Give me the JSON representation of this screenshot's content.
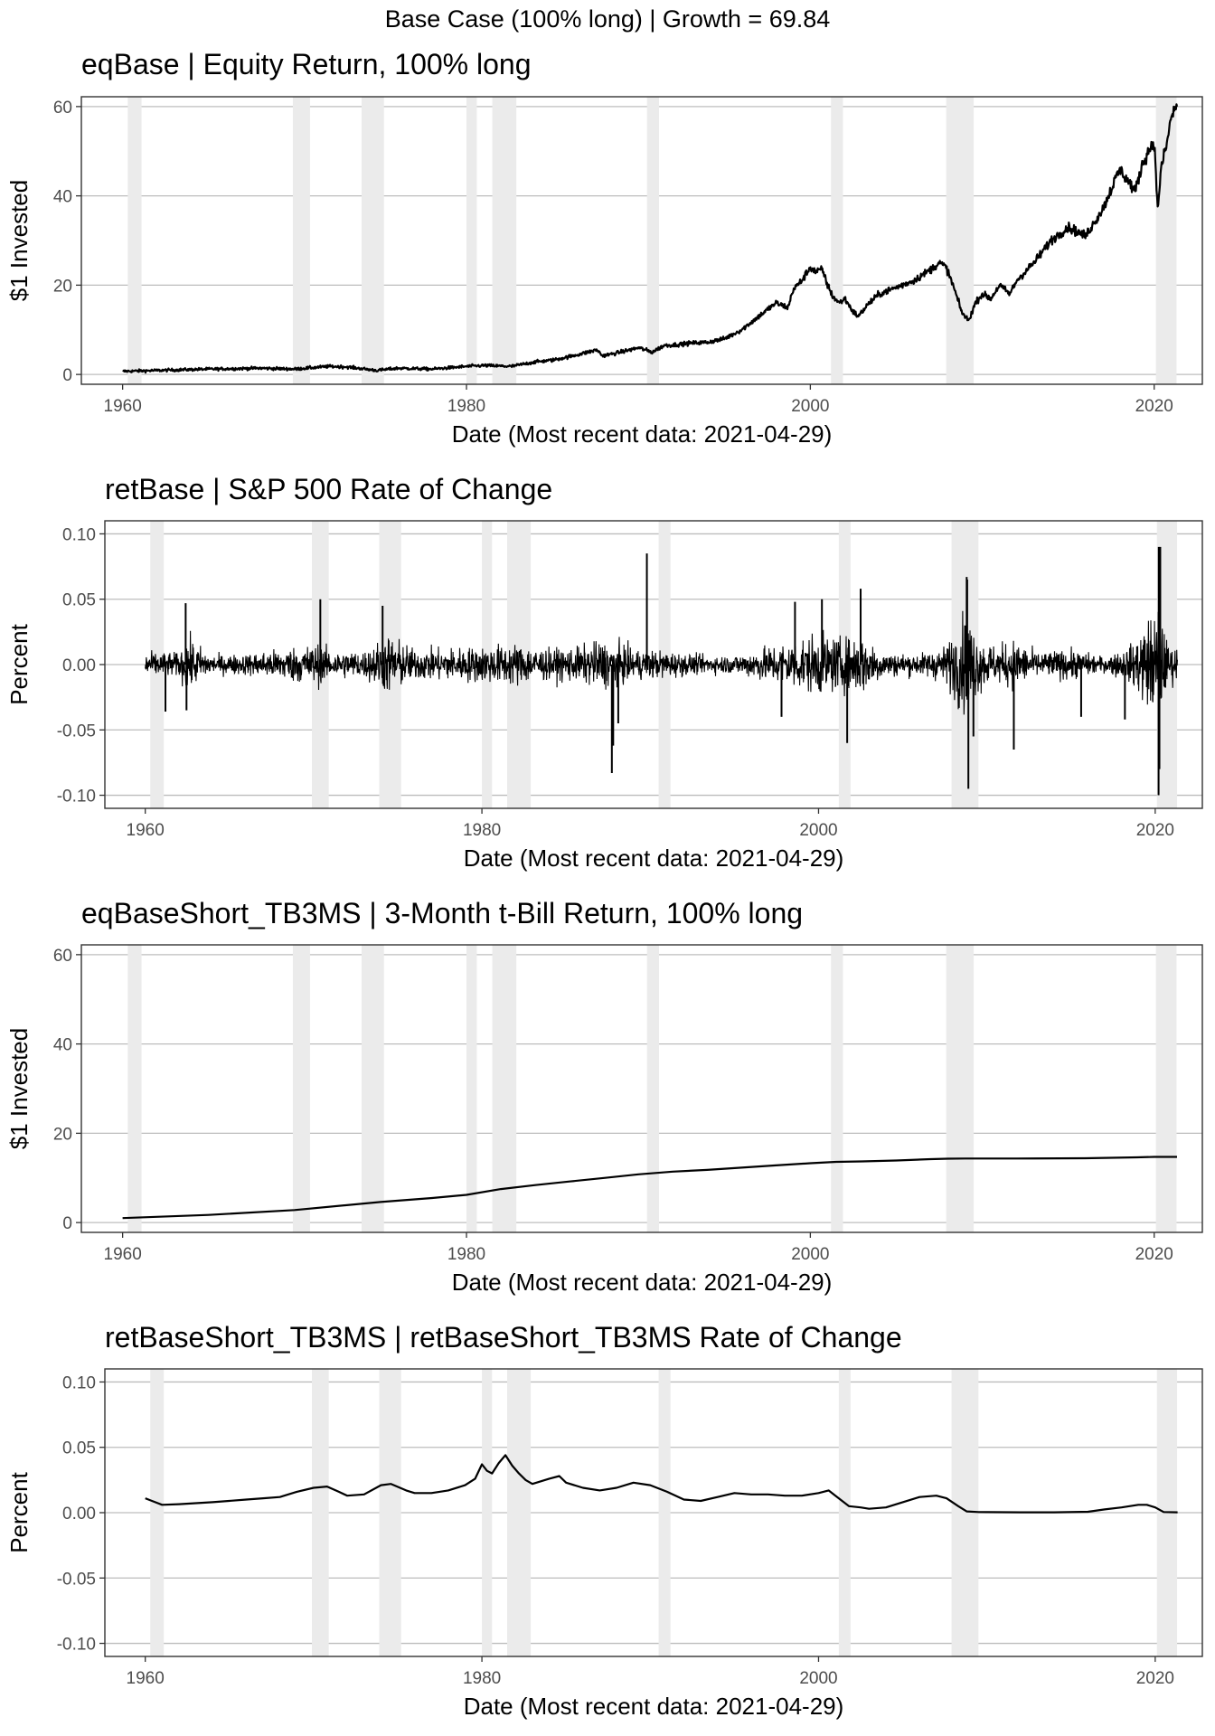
{
  "figure": {
    "title": "Base Case (100% long) | Growth = 69.84"
  },
  "recessions": [
    [
      1960.3,
      1961.1
    ],
    [
      1969.9,
      1970.9
    ],
    [
      1973.9,
      1975.2
    ],
    [
      1980.0,
      1980.6
    ],
    [
      1981.5,
      1982.9
    ],
    [
      1990.5,
      1991.2
    ],
    [
      2001.2,
      2001.9
    ],
    [
      2007.9,
      2009.5
    ],
    [
      2020.1,
      2021.3
    ]
  ],
  "chart_data": [
    {
      "id": "eqBase",
      "type": "line",
      "title": "eqBase | Equity Return, 100% long",
      "xlabel": "Date (Most recent data: 2021-04-29)",
      "ylabel": "$1 Invested",
      "xlim": [
        1957.6,
        2022.8
      ],
      "ylim": [
        -2.2,
        62.2
      ],
      "xticks": [
        1960,
        1980,
        2000,
        2020
      ],
      "yticks": [
        0,
        20,
        40,
        60
      ],
      "ytick_labels": [
        "0",
        "20",
        "40",
        "60"
      ],
      "grid": true,
      "x": [
        1960.0,
        1962.0,
        1965.0,
        1968.0,
        1970.0,
        1972.0,
        1973.0,
        1974.8,
        1976.0,
        1978.0,
        1980.0,
        1981.0,
        1982.6,
        1984.0,
        1985.0,
        1986.0,
        1987.6,
        1987.9,
        1988.5,
        1989.5,
        1990.0,
        1990.8,
        1991.5,
        1992.0,
        1993.0,
        1994.0,
        1995.0,
        1996.0,
        1997.0,
        1998.0,
        1998.7,
        1999.0,
        1999.5,
        2000.0,
        2000.3,
        2000.7,
        2001.0,
        2001.3,
        2001.7,
        2002.0,
        2002.5,
        2002.8,
        2003.3,
        2004.0,
        2005.0,
        2006.0,
        2007.0,
        2007.5,
        2007.9,
        2008.3,
        2008.8,
        2009.2,
        2009.6,
        2010.0,
        2010.5,
        2011.0,
        2011.6,
        2012.0,
        2013.0,
        2014.0,
        2015.0,
        2015.5,
        2016.0,
        2017.0,
        2018.0,
        2018.9,
        2019.3,
        2019.8,
        2020.0,
        2020.2,
        2020.4,
        2020.8,
        2021.0,
        2021.33
      ],
      "y": [
        0.7,
        0.9,
        1.2,
        1.4,
        1.2,
        1.8,
        1.7,
        0.9,
        1.4,
        1.2,
        1.8,
        2.0,
        1.8,
        2.8,
        3.2,
        4.0,
        5.5,
        4.2,
        4.6,
        5.5,
        6.0,
        5.0,
        6.5,
        6.6,
        7.0,
        7.2,
        8.0,
        10.0,
        13.0,
        16.0,
        15.0,
        19.0,
        21.0,
        24.0,
        23.0,
        23.5,
        20.0,
        17.5,
        16.0,
        17.0,
        14.0,
        13.0,
        15.5,
        18.0,
        19.5,
        21.0,
        23.5,
        25.0,
        24.0,
        20.0,
        14.0,
        12.0,
        16.0,
        18.0,
        17.0,
        20.0,
        18.0,
        21.0,
        25.0,
        30.0,
        33.0,
        32.0,
        31.0,
        37.0,
        46.0,
        41.0,
        47.0,
        51.0,
        52.0,
        37.0,
        46.0,
        53.0,
        58.0,
        60.0
      ]
    },
    {
      "id": "retBase",
      "type": "line",
      "title": "retBase | S&P 500 Rate of Change",
      "xlabel": "Date (Most recent data: 2021-04-29)",
      "ylabel": "Percent",
      "xlim": [
        1957.6,
        2022.8
      ],
      "ylim": [
        -0.11,
        0.11
      ],
      "xticks": [
        1960,
        1980,
        2000,
        2020
      ],
      "yticks": [
        -0.1,
        -0.05,
        0.0,
        0.05,
        0.1
      ],
      "ytick_labels": [
        "-0.10",
        "-0.05",
        "0.00",
        "0.05",
        "0.10"
      ],
      "grid": true,
      "volatility_x": [
        1960.0,
        1962.0,
        1962.5,
        1964.0,
        1966.0,
        1970.3,
        1971.0,
        1973.0,
        1974.5,
        1976.0,
        1980.0,
        1982.0,
        1984.0,
        1986.0,
        1987.0,
        1988.0,
        1989.0,
        1991.0,
        1993.0,
        1995.0,
        1997.0,
        1998.5,
        2000.0,
        2001.5,
        2002.5,
        2003.5,
        2004.0,
        2006.0,
        2007.5,
        2008.8,
        2009.5,
        2010.5,
        2011.6,
        2013.0,
        2015.0,
        2017.0,
        2018.5,
        2020.2,
        2020.7,
        2021.33
      ],
      "volatility_y": [
        0.008,
        0.008,
        0.018,
        0.006,
        0.007,
        0.014,
        0.009,
        0.009,
        0.02,
        0.01,
        0.012,
        0.014,
        0.01,
        0.012,
        0.016,
        0.014,
        0.01,
        0.009,
        0.006,
        0.006,
        0.012,
        0.016,
        0.02,
        0.017,
        0.02,
        0.012,
        0.008,
        0.007,
        0.012,
        0.035,
        0.018,
        0.012,
        0.016,
        0.008,
        0.01,
        0.005,
        0.012,
        0.04,
        0.015,
        0.01
      ],
      "spikes_x": [
        1961.2,
        1962.4,
        1962.45,
        1970.4,
        1974.1,
        1987.72,
        1987.8,
        1988.1,
        1989.8,
        1997.8,
        1998.6,
        2000.2,
        2001.7,
        2002.5,
        2008.8,
        2008.83,
        2008.9,
        2009.2,
        2011.6,
        2015.6,
        2018.2,
        2020.2,
        2020.21,
        2020.25,
        2020.3
      ],
      "spikes_y": [
        -0.036,
        0.047,
        -0.035,
        0.05,
        0.045,
        -0.083,
        -0.062,
        -0.045,
        0.085,
        -0.04,
        0.048,
        0.05,
        -0.06,
        0.058,
        0.067,
        0.065,
        -0.095,
        -0.055,
        -0.065,
        -0.04,
        -0.042,
        -0.1,
        0.09,
        -0.08,
        0.09
      ]
    },
    {
      "id": "eqBaseShort_TB3MS",
      "type": "line",
      "title": "eqBaseShort_TB3MS | 3-Month t-Bill Return, 100% long",
      "xlabel": "Date (Most recent data: 2021-04-29)",
      "ylabel": "$1 Invested",
      "xlim": [
        1957.6,
        2022.8
      ],
      "ylim": [
        -2.2,
        62.2
      ],
      "xticks": [
        1960,
        1980,
        2000,
        2020
      ],
      "yticks": [
        0,
        20,
        40,
        60
      ],
      "ytick_labels": [
        "0",
        "20",
        "40",
        "60"
      ],
      "grid": true,
      "x": [
        1960.0,
        1965.0,
        1970.0,
        1975.0,
        1978.0,
        1980.0,
        1982.0,
        1984.0,
        1986.0,
        1988.0,
        1990.0,
        1992.0,
        1994.0,
        1996.0,
        1998.0,
        2000.0,
        2001.5,
        2003.0,
        2005.0,
        2007.0,
        2008.0,
        2009.0,
        2012.0,
        2016.0,
        2019.0,
        2020.0,
        2021.33
      ],
      "y": [
        1.0,
        1.7,
        2.8,
        4.6,
        5.5,
        6.2,
        7.5,
        8.4,
        9.2,
        10.0,
        10.8,
        11.4,
        11.8,
        12.3,
        12.8,
        13.3,
        13.6,
        13.7,
        13.9,
        14.2,
        14.3,
        14.35,
        14.35,
        14.4,
        14.6,
        14.7,
        14.7
      ]
    },
    {
      "id": "retBaseShort_TB3MS",
      "type": "line",
      "title": "retBaseShort_TB3MS | retBaseShort_TB3MS Rate of Change",
      "xlabel": "Date (Most recent data: 2021-04-29)",
      "ylabel": "Percent",
      "xlim": [
        1957.6,
        2022.8
      ],
      "ylim": [
        -0.11,
        0.11
      ],
      "xticks": [
        1960,
        1980,
        2000,
        2020
      ],
      "yticks": [
        -0.1,
        -0.05,
        0.0,
        0.05,
        0.1
      ],
      "ytick_labels": [
        "-0.10",
        "-0.05",
        "0.00",
        "0.05",
        "0.10"
      ],
      "grid": true,
      "x": [
        1960.0,
        1960.4,
        1961.0,
        1962.0,
        1964.0,
        1966.0,
        1967.0,
        1968.0,
        1969.0,
        1970.0,
        1970.8,
        1971.5,
        1972.0,
        1973.0,
        1974.0,
        1974.6,
        1975.5,
        1976.0,
        1977.0,
        1978.0,
        1979.0,
        1979.6,
        1980.0,
        1980.3,
        1980.6,
        1981.0,
        1981.4,
        1981.8,
        1982.2,
        1982.6,
        1983.0,
        1984.0,
        1984.6,
        1985.0,
        1986.0,
        1987.0,
        1988.0,
        1989.0,
        1990.0,
        1991.0,
        1992.0,
        1993.0,
        1994.0,
        1995.0,
        1996.0,
        1997.0,
        1998.0,
        1999.0,
        2000.0,
        2000.6,
        2001.0,
        2001.8,
        2002.5,
        2003.0,
        2004.0,
        2005.0,
        2006.0,
        2007.0,
        2007.6,
        2008.3,
        2008.8,
        2009.5,
        2010.0,
        2012.0,
        2014.0,
        2016.0,
        2017.0,
        2018.0,
        2019.0,
        2019.5,
        2020.0,
        2020.5,
        2021.33
      ],
      "y": [
        0.011,
        0.009,
        0.006,
        0.0065,
        0.008,
        0.01,
        0.011,
        0.012,
        0.016,
        0.019,
        0.02,
        0.016,
        0.013,
        0.014,
        0.021,
        0.022,
        0.017,
        0.015,
        0.015,
        0.017,
        0.021,
        0.026,
        0.037,
        0.032,
        0.03,
        0.038,
        0.044,
        0.036,
        0.03,
        0.025,
        0.022,
        0.026,
        0.028,
        0.023,
        0.019,
        0.017,
        0.019,
        0.023,
        0.021,
        0.016,
        0.01,
        0.009,
        0.012,
        0.015,
        0.014,
        0.014,
        0.013,
        0.013,
        0.015,
        0.017,
        0.013,
        0.005,
        0.004,
        0.003,
        0.004,
        0.008,
        0.012,
        0.013,
        0.011,
        0.005,
        0.001,
        0.0005,
        0.0004,
        0.0003,
        0.0003,
        0.0007,
        0.0025,
        0.004,
        0.006,
        0.006,
        0.004,
        0.0005,
        0.0003
      ]
    }
  ]
}
